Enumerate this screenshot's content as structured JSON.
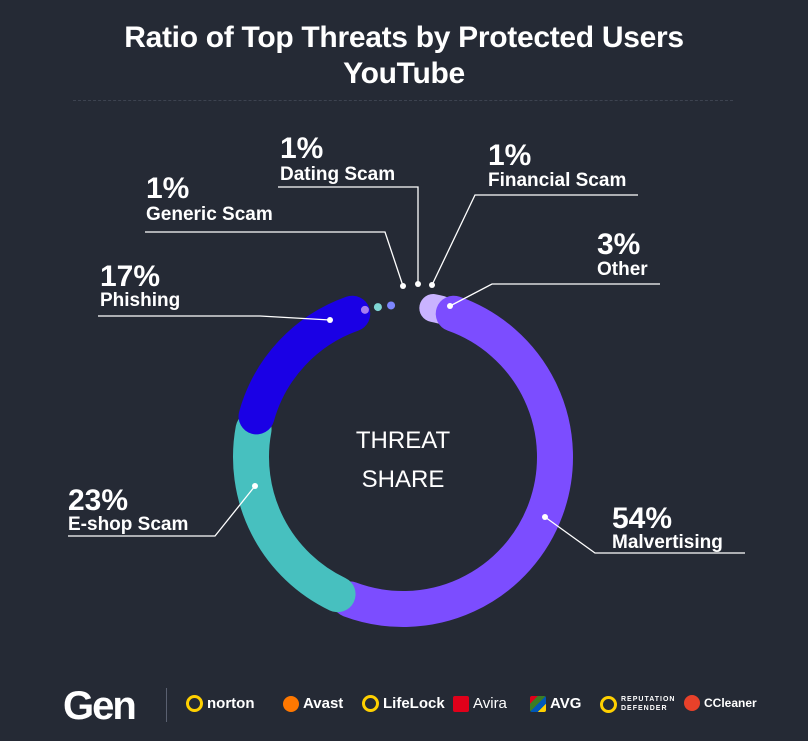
{
  "header": {
    "title_line1": "Ratio of Top Threats by Protected Users",
    "title_line2": "YouTube"
  },
  "chart_data": {
    "type": "pie",
    "variant": "donut",
    "center_label": [
      "THREAT",
      "SHARE"
    ],
    "slices": [
      {
        "label": "Malvertising",
        "value": 54,
        "display": "54%",
        "color": "#7c4dff"
      },
      {
        "label": "E-shop Scam",
        "value": 23,
        "display": "23%",
        "color": "#47c0bf"
      },
      {
        "label": "Phishing",
        "value": 17,
        "display": "17%",
        "color": "#1a00e5"
      },
      {
        "label": "Generic Scam",
        "value": 1,
        "display": "1%",
        "color": "#a77ef0"
      },
      {
        "label": "Dating Scam",
        "value": 1,
        "display": "1%",
        "color": "#7fd6d4"
      },
      {
        "label": "Financial Scam",
        "value": 1,
        "display": "1%",
        "color": "#7d86ff"
      },
      {
        "label": "Other",
        "value": 3,
        "display": "3%",
        "color": "#c9b3ff"
      }
    ]
  },
  "footer": {
    "logo": "Gen",
    "brands": [
      {
        "name": "norton",
        "icon": "norton-check-icon",
        "color": "#ffd000"
      },
      {
        "name": "Avast",
        "icon": "avast-icon",
        "color": "#ff7800"
      },
      {
        "name": "LifeLock",
        "icon": "lifelock-lock-icon",
        "color": "#ffd000"
      },
      {
        "name": "Avira",
        "icon": "avira-icon",
        "color": "#e0001a"
      },
      {
        "name": "AVG",
        "icon": "avg-icon",
        "color": "#3b7d23"
      },
      {
        "name": "REPUTATION DEFENDER",
        "icon": "reputation-defender-icon",
        "color": "#ffd000"
      },
      {
        "name": "CCleaner",
        "icon": "ccleaner-icon",
        "color": "#e8412a"
      }
    ]
  }
}
